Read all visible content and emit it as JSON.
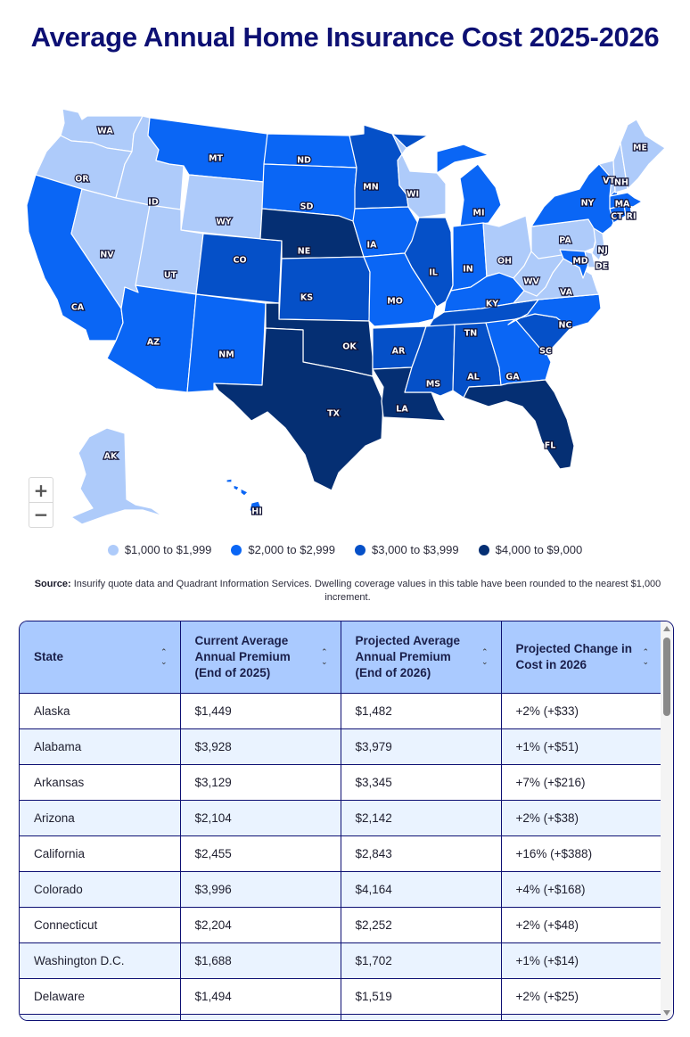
{
  "title": "Average Annual Home Insurance Cost 2025-2026",
  "map": {
    "legend": [
      {
        "label": "$1,000 to $1,999",
        "color": "#aecbfa",
        "tier": 1
      },
      {
        "label": "$2,000 to $2,999",
        "color": "#0a66f5",
        "tier": 2
      },
      {
        "label": "$3,000 to $3,999",
        "color": "#0550c8",
        "tier": 3
      },
      {
        "label": "$4,000 to $9,000",
        "color": "#052f73",
        "tier": 4
      }
    ],
    "zoom_in_label": "+",
    "zoom_out_label": "−",
    "states": {
      "WA": {
        "tier": 1
      },
      "OR": {
        "tier": 1
      },
      "ID": {
        "tier": 1
      },
      "NV": {
        "tier": 1
      },
      "UT": {
        "tier": 1
      },
      "WY": {
        "tier": 1
      },
      "WI": {
        "tier": 1
      },
      "OH": {
        "tier": 1
      },
      "PA": {
        "tier": 1
      },
      "WV": {
        "tier": 1
      },
      "VA": {
        "tier": 1
      },
      "NJ": {
        "tier": 1
      },
      "DE": {
        "tier": 1
      },
      "VT": {
        "tier": 1
      },
      "NH": {
        "tier": 1
      },
      "ME": {
        "tier": 1
      },
      "AK": {
        "tier": 1
      },
      "CA": {
        "tier": 2
      },
      "MT": {
        "tier": 2
      },
      "ND": {
        "tier": 2
      },
      "SD": {
        "tier": 2
      },
      "AZ": {
        "tier": 2
      },
      "NM": {
        "tier": 2
      },
      "IA": {
        "tier": 2
      },
      "MO": {
        "tier": 2
      },
      "MI": {
        "tier": 2
      },
      "IN": {
        "tier": 2
      },
      "KY": {
        "tier": 2
      },
      "NY": {
        "tier": 2
      },
      "GA": {
        "tier": 2
      },
      "NC": {
        "tier": 2
      },
      "CT": {
        "tier": 2
      },
      "MD": {
        "tier": 2
      },
      "HI": {
        "tier": 2
      },
      "RI": {
        "tier": 2
      },
      "MA": {
        "tier": 2
      },
      "MN": {
        "tier": 3
      },
      "CO": {
        "tier": 3
      },
      "KS": {
        "tier": 3
      },
      "IL": {
        "tier": 3
      },
      "AR": {
        "tier": 3
      },
      "TN": {
        "tier": 3
      },
      "MS": {
        "tier": 3
      },
      "AL": {
        "tier": 3
      },
      "SC": {
        "tier": 3
      },
      "NE": {
        "tier": 4
      },
      "OK": {
        "tier": 4
      },
      "TX": {
        "tier": 4
      },
      "LA": {
        "tier": 4
      },
      "FL": {
        "tier": 4
      }
    }
  },
  "source": {
    "label": "Source:",
    "text": " Insurify quote data and Quadrant Information Services. Dwelling coverage values in this table have been rounded to the nearest $1,000 increment."
  },
  "table": {
    "headers": [
      "State",
      "Current Average Annual Premium (End of 2025)",
      "Projected Average Annual Premium (End of 2026)",
      "Projected Change in Cost in 2026"
    ],
    "rows": [
      [
        "Alaska",
        "$1,449",
        "$1,482",
        "+2% (+$33)"
      ],
      [
        "Alabama",
        "$3,928",
        "$3,979",
        "+1% (+$51)"
      ],
      [
        "Arkansas",
        "$3,129",
        "$3,345",
        "+7% (+$216)"
      ],
      [
        "Arizona",
        "$2,104",
        "$2,142",
        "+2% (+$38)"
      ],
      [
        "California",
        "$2,455",
        "$2,843",
        "+16% (+$388)"
      ],
      [
        "Colorado",
        "$3,996",
        "$4,164",
        "+4% (+$168)"
      ],
      [
        "Connecticut",
        "$2,204",
        "$2,252",
        "+2% (+$48)"
      ],
      [
        "Washington D.C.",
        "$1,688",
        "$1,702",
        "+1% (+$14)"
      ],
      [
        "Delaware",
        "$1,494",
        "$1,519",
        "+2% (+$25)"
      ]
    ]
  }
}
